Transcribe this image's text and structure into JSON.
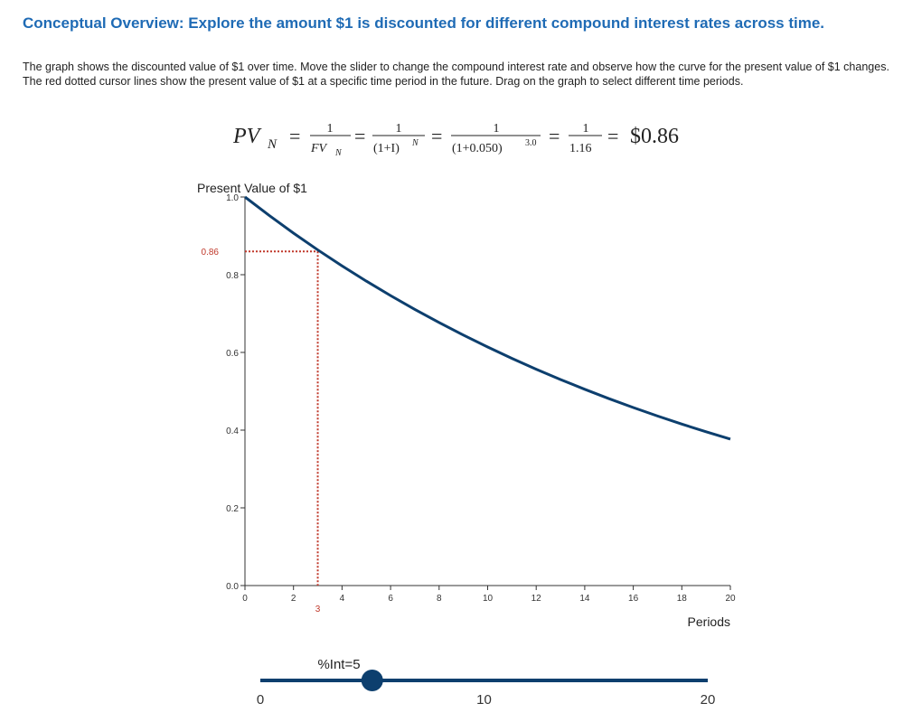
{
  "header": {
    "title": "Conceptual Overview: Explore the amount $1 is discounted for different compound interest rates across time."
  },
  "description": "The graph shows the discounted value of $1 over time. Move the slider to change the compound interest rate and observe how the curve for the present value of $1 changes. The red dotted cursor lines show the present value of $1 at a specific time period in the future. Drag on the graph to select different time periods.",
  "formula": {
    "lhs": "PV",
    "lhs_sub": "N",
    "equals": "=",
    "frac1": {
      "num": "1",
      "den": "FV",
      "den_sub": "N"
    },
    "frac2": {
      "num": "1",
      "den": "(1+I)",
      "den_sup": "N"
    },
    "frac3": {
      "num": "1",
      "den": "(1+0.050)",
      "den_sup": "3.0"
    },
    "frac4": {
      "num": "1",
      "den": "1.16"
    },
    "result": "$0.86"
  },
  "chart_data": {
    "type": "line",
    "title": "Present Value of $1",
    "x_label": "Periods",
    "x": [
      0,
      1,
      2,
      3,
      4,
      5,
      6,
      7,
      8,
      9,
      10,
      11,
      12,
      13,
      14,
      15,
      16,
      17,
      18,
      19,
      20
    ],
    "values": [
      1,
      0.9524,
      0.907,
      0.8638,
      0.8227,
      0.7835,
      0.7462,
      0.7107,
      0.6768,
      0.6446,
      0.6139,
      0.5847,
      0.5568,
      0.5303,
      0.5051,
      0.481,
      0.4581,
      0.4363,
      0.4155,
      0.3957,
      0.3769
    ],
    "color": "#0d3f6e",
    "xlim": [
      0,
      20
    ],
    "xticks": [
      0,
      2,
      4,
      6,
      8,
      10,
      12,
      14,
      16,
      18,
      20
    ],
    "ylim": [
      0,
      1
    ],
    "yticks": [
      {
        "value": 0,
        "label": "0.0"
      },
      0.2,
      0.4,
      0.6,
      0.8,
      {
        "value": 1,
        "label": "1.0"
      }
    ],
    "cursor": {
      "x": 3,
      "y": 0.86,
      "color": "#c0392b"
    }
  },
  "slider": {
    "label": "%Int=5",
    "value": 5,
    "range": [
      0,
      20
    ],
    "ticks": [
      0,
      10,
      20
    ]
  }
}
